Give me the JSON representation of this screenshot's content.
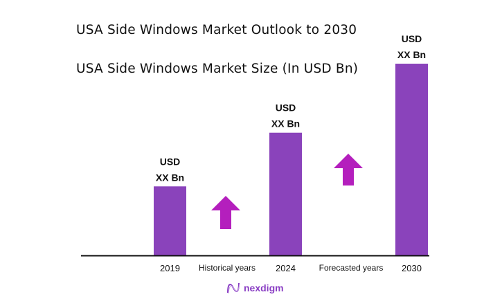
{
  "chart_data": {
    "type": "bar",
    "title": "USA Side Windows Market Outlook to 2030",
    "subtitle": "USA Side Windows Market Size (In USD Bn)",
    "categories": [
      "2019",
      "2024",
      "2030"
    ],
    "relative_values": [
      0.36,
      0.64,
      1.0
    ],
    "data_labels": [
      {
        "line1": "USD",
        "line2": "XX Bn"
      },
      {
        "line1": "USD",
        "line2": "XX Bn"
      },
      {
        "line1": "USD",
        "line2": "XX Bn"
      }
    ],
    "period_labels": [
      "Historical years",
      "Forecasted years"
    ],
    "grid": false,
    "bar_color": "#8a43bb",
    "arrow_color": "#b41fbd",
    "arrow_icon": "up-arrow-icon"
  },
  "brand": {
    "name": "nexdigm",
    "color": "#8a3fc4"
  }
}
